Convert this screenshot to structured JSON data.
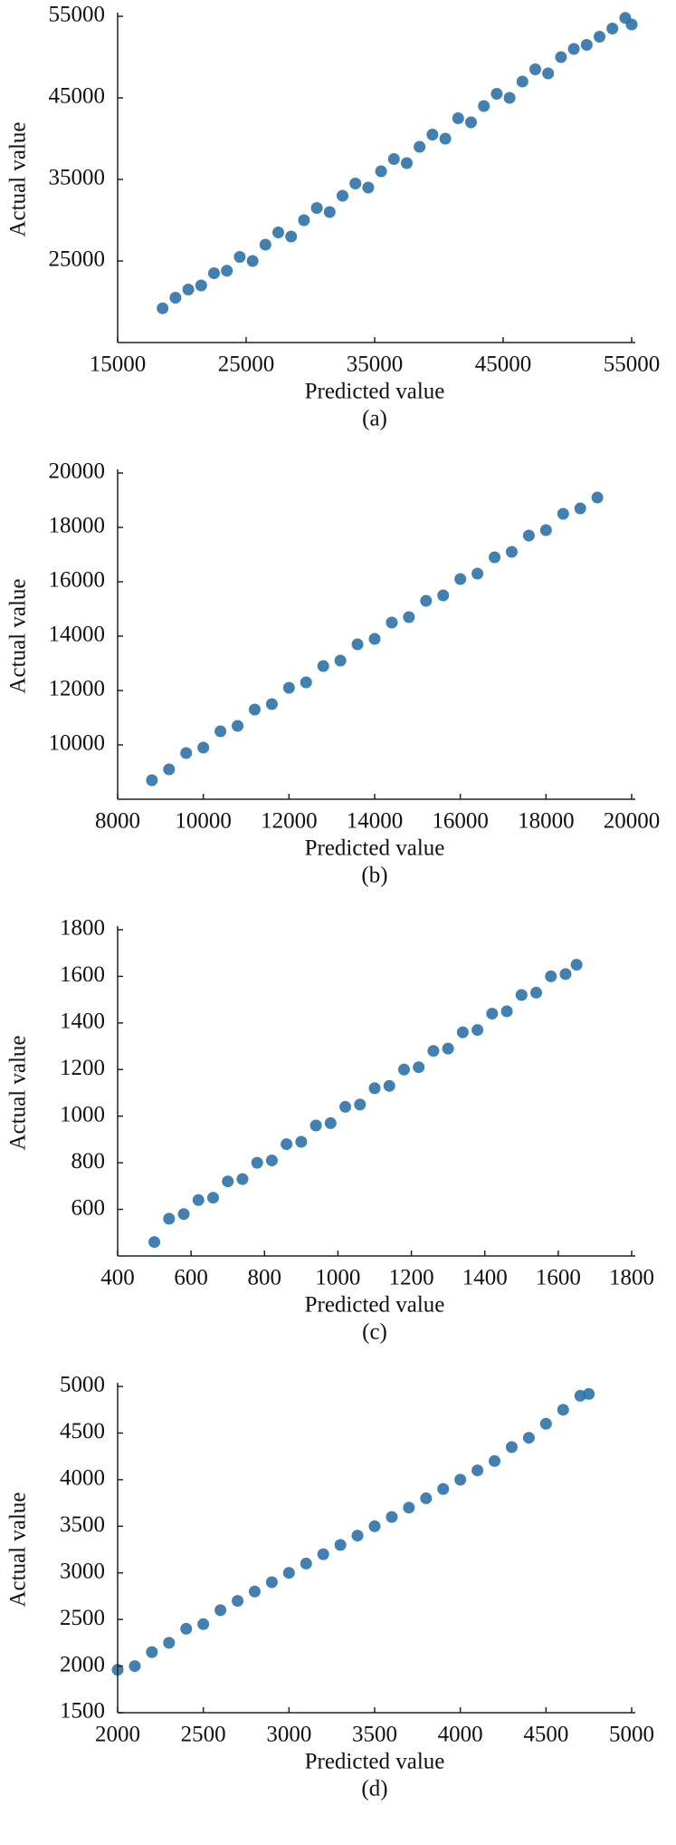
{
  "chart_data": [
    {
      "type": "scatter",
      "caption": "(a)",
      "xlabel": "Predicted value",
      "ylabel": "Actual value",
      "color": "#2e72a8",
      "xlim": [
        15000,
        55000
      ],
      "ylim": [
        15000,
        55000
      ],
      "xticks": [
        15000,
        25000,
        35000,
        45000,
        55000
      ],
      "yticks": [
        25000,
        35000,
        45000,
        55000
      ],
      "x": [
        18500,
        19500,
        20500,
        21500,
        22500,
        23500,
        24500,
        25500,
        26500,
        27500,
        28500,
        29500,
        30500,
        31500,
        32500,
        33500,
        34500,
        35500,
        36500,
        37500,
        38500,
        39500,
        40500,
        41500,
        42500,
        43500,
        44500,
        45500,
        46500,
        47500,
        48500,
        49500,
        50500,
        51500,
        52500,
        53500,
        54500,
        55000
      ],
      "y": [
        19200,
        20500,
        21500,
        22000,
        23500,
        23800,
        25500,
        25000,
        27000,
        28500,
        28000,
        30000,
        31500,
        31000,
        33000,
        34500,
        34000,
        36000,
        37500,
        37000,
        39000,
        40500,
        40000,
        42500,
        42000,
        44000,
        45500,
        45000,
        47000,
        48500,
        48000,
        50000,
        51000,
        51500,
        52500,
        53500,
        54800,
        54000
      ]
    },
    {
      "type": "scatter",
      "caption": "(b)",
      "xlabel": "Predicted value",
      "ylabel": "Actual value",
      "color": "#2e72a8",
      "xlim": [
        8000,
        20000
      ],
      "ylim": [
        8000,
        20000
      ],
      "xticks": [
        8000,
        10000,
        12000,
        14000,
        16000,
        18000,
        20000
      ],
      "yticks": [
        10000,
        12000,
        14000,
        16000,
        18000,
        20000
      ],
      "x": [
        8800,
        9200,
        9600,
        10000,
        10400,
        10800,
        11200,
        11600,
        12000,
        12400,
        12800,
        13200,
        13600,
        14000,
        14400,
        14800,
        15200,
        15600,
        16000,
        16400,
        16800,
        17200,
        17600,
        18000,
        18400,
        18800,
        19200
      ],
      "y": [
        8700,
        9100,
        9700,
        9900,
        10500,
        10700,
        11300,
        11500,
        12100,
        12300,
        12900,
        13100,
        13700,
        13900,
        14500,
        14700,
        15300,
        15500,
        16100,
        16300,
        16900,
        17100,
        17700,
        17900,
        18500,
        18700,
        19100
      ]
    },
    {
      "type": "scatter",
      "caption": "(c)",
      "xlabel": "Predicted value",
      "ylabel": "Actual value",
      "color": "#2e72a8",
      "xlim": [
        400,
        1800
      ],
      "ylim": [
        400,
        1800
      ],
      "xticks": [
        400,
        600,
        800,
        1000,
        1200,
        1400,
        1600,
        1800
      ],
      "yticks": [
        600,
        800,
        1000,
        1200,
        1400,
        1600,
        1800
      ],
      "x": [
        500,
        540,
        580,
        620,
        660,
        700,
        740,
        780,
        820,
        860,
        900,
        940,
        980,
        1020,
        1060,
        1100,
        1140,
        1180,
        1220,
        1260,
        1300,
        1340,
        1380,
        1420,
        1460,
        1500,
        1540,
        1580,
        1620,
        1650
      ],
      "y": [
        460,
        560,
        580,
        640,
        650,
        720,
        730,
        800,
        810,
        880,
        890,
        960,
        970,
        1040,
        1050,
        1120,
        1130,
        1200,
        1210,
        1280,
        1290,
        1360,
        1370,
        1440,
        1450,
        1520,
        1530,
        1600,
        1610,
        1650
      ]
    },
    {
      "type": "scatter",
      "caption": "(d)",
      "xlabel": "Predicted value",
      "ylabel": "Actual value",
      "color": "#2e72a8",
      "xlim": [
        2000,
        5000
      ],
      "ylim": [
        1500,
        5000
      ],
      "xticks": [
        2000,
        2500,
        3000,
        3500,
        4000,
        4500,
        5000
      ],
      "yticks": [
        1500,
        2000,
        2500,
        3000,
        3500,
        4000,
        4500,
        5000
      ],
      "x": [
        2000,
        2100,
        2200,
        2300,
        2400,
        2500,
        2600,
        2700,
        2800,
        2900,
        3000,
        3100,
        3200,
        3300,
        3400,
        3500,
        3600,
        3700,
        3800,
        3900,
        4000,
        4100,
        4200,
        4300,
        4400,
        4500,
        4600,
        4700,
        4750
      ],
      "y": [
        1960,
        2000,
        2150,
        2250,
        2400,
        2450,
        2600,
        2700,
        2800,
        2900,
        3000,
        3100,
        3200,
        3300,
        3400,
        3500,
        3600,
        3700,
        3800,
        3900,
        4000,
        4100,
        4200,
        4350,
        4450,
        4600,
        4750,
        4900,
        4920
      ]
    }
  ]
}
